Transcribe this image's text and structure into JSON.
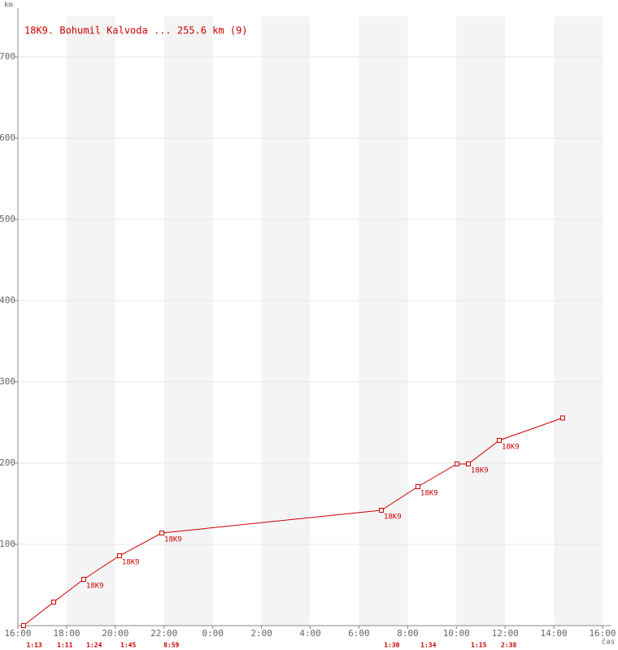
{
  "chart_data": {
    "type": "line",
    "title": "18K9. Bohumil Kalvoda ... 255.6 km (9)",
    "y_label": "km",
    "x_label": "čas",
    "series": [
      {
        "name": "18K9",
        "color": "#cc0000",
        "x": [
          0.23,
          1.47,
          2.7,
          4.17,
          5.91,
          14.92,
          16.42,
          18.02,
          18.49,
          19.76,
          22.36
        ],
        "values": [
          0,
          29,
          57,
          86,
          114,
          142,
          171,
          199,
          199,
          228,
          255.6
        ],
        "point_labels": [
          null,
          null,
          "18K9",
          "18K9",
          "18K9",
          "18K9",
          "18K9",
          null,
          "18K9",
          "18K9",
          null
        ]
      }
    ],
    "segment_times": [
      {
        "x": 0.67,
        "label": "1:13"
      },
      {
        "x": 1.93,
        "label": "1:11"
      },
      {
        "x": 3.13,
        "label": "1:24"
      },
      {
        "x": 4.53,
        "label": "1:45"
      },
      {
        "x": 6.3,
        "label": "8:59"
      },
      {
        "x": 15.35,
        "label": "1:30"
      },
      {
        "x": 16.85,
        "label": "1:34"
      },
      {
        "x": 18.92,
        "label": "1:15"
      },
      {
        "x": 20.15,
        "label": "2:38"
      }
    ],
    "xlim": [
      0,
      24
    ],
    "ylim": [
      0,
      750
    ],
    "xticks": [
      {
        "value": 0,
        "label": "16:00"
      },
      {
        "value": 2,
        "label": "18:00"
      },
      {
        "value": 4,
        "label": "20:00"
      },
      {
        "value": 6,
        "label": "22:00"
      },
      {
        "value": 8,
        "label": "0:00"
      },
      {
        "value": 10,
        "label": "2:00"
      },
      {
        "value": 12,
        "label": "4:00"
      },
      {
        "value": 14,
        "label": "6:00"
      },
      {
        "value": 16,
        "label": "8:00"
      },
      {
        "value": 18,
        "label": "10:00"
      },
      {
        "value": 20,
        "label": "12:00"
      },
      {
        "value": 22,
        "label": "14:00"
      },
      {
        "value": 24,
        "label": "16:00"
      }
    ],
    "yticks": [
      100,
      200,
      300,
      400,
      500,
      600,
      700
    ],
    "grid": true
  }
}
